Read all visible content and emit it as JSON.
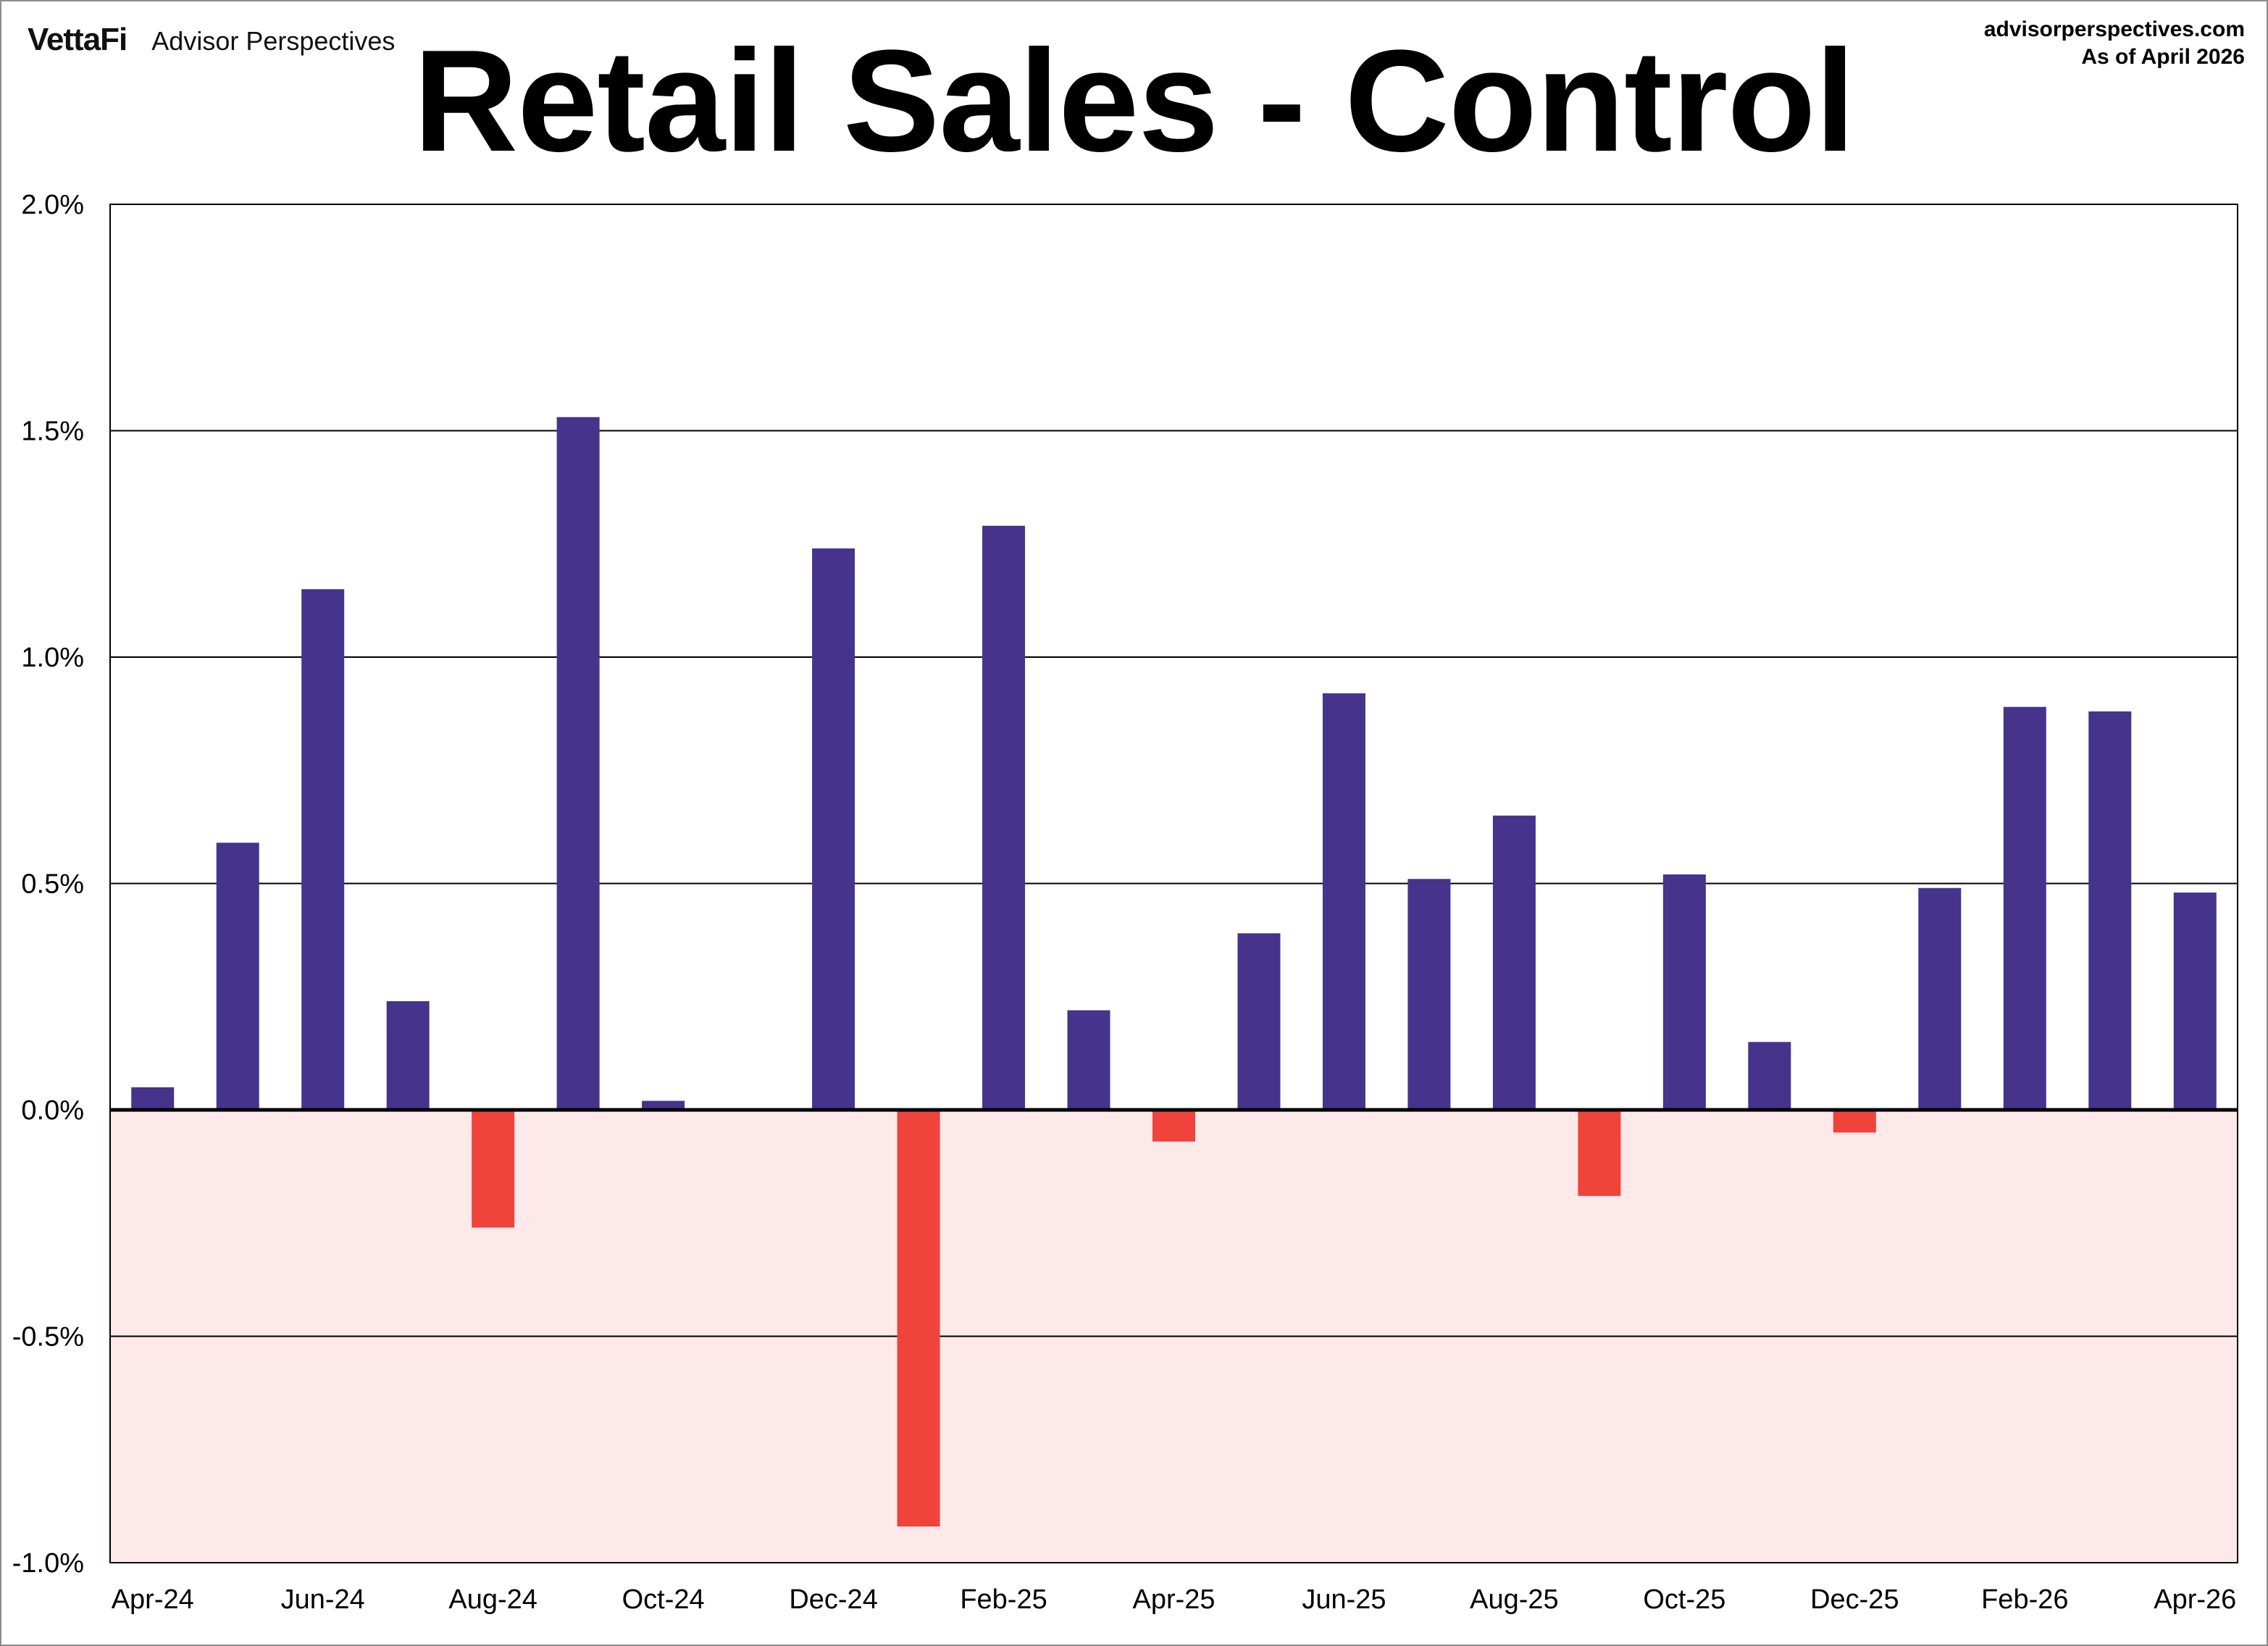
{
  "header": {
    "logo": "VettaFi",
    "brand": "Advisor Perspectives",
    "site": "advisorperspectives.com",
    "as_of": "As of April 2026"
  },
  "colors": {
    "positive": "#46338c",
    "negative": "#ef433b",
    "negative_zone": "#fde9e9",
    "grid": "#000000"
  },
  "chart_data": {
    "type": "bar",
    "title": "Retail Sales - Control",
    "xlabel": "",
    "ylabel": "",
    "ylim": [
      -1.0,
      2.0
    ],
    "yticks": [
      -1.0,
      -0.5,
      0.0,
      0.5,
      1.0,
      1.5,
      2.0
    ],
    "ytick_labels": [
      "-1.0%",
      "-0.5%",
      "0.0%",
      "0.5%",
      "1.0%",
      "1.5%",
      "2.0%"
    ],
    "grid": true,
    "legend": "none",
    "categories": [
      "Apr-24",
      "May-24",
      "Jun-24",
      "Jul-24",
      "Aug-24",
      "Sep-24",
      "Oct-24",
      "Nov-24",
      "Dec-24",
      "Jan-25",
      "Feb-25",
      "Mar-25",
      "Apr-25",
      "May-25",
      "Jun-25",
      "Jul-25",
      "Aug-25",
      "Sep-25",
      "Oct-25",
      "Nov-25",
      "Dec-25",
      "Jan-26",
      "Feb-26",
      "Mar-26",
      "Apr-26"
    ],
    "tick_labels": [
      "Apr-24",
      "",
      "Jun-24",
      "",
      "Aug-24",
      "",
      "Oct-24",
      "",
      "Dec-24",
      "",
      "Feb-25",
      "",
      "Apr-25",
      "",
      "Jun-25",
      "",
      "Aug-25",
      "",
      "Oct-25",
      "",
      "Dec-25",
      "",
      "Feb-26",
      "",
      "Apr-26"
    ],
    "values": [
      0.05,
      0.59,
      1.15,
      0.24,
      -0.26,
      1.53,
      0.02,
      0.0,
      1.24,
      -0.92,
      1.29,
      0.22,
      -0.07,
      0.39,
      0.92,
      0.51,
      0.65,
      -0.19,
      0.52,
      0.15,
      -0.05,
      0.49,
      0.89,
      0.88,
      0.48
    ]
  }
}
